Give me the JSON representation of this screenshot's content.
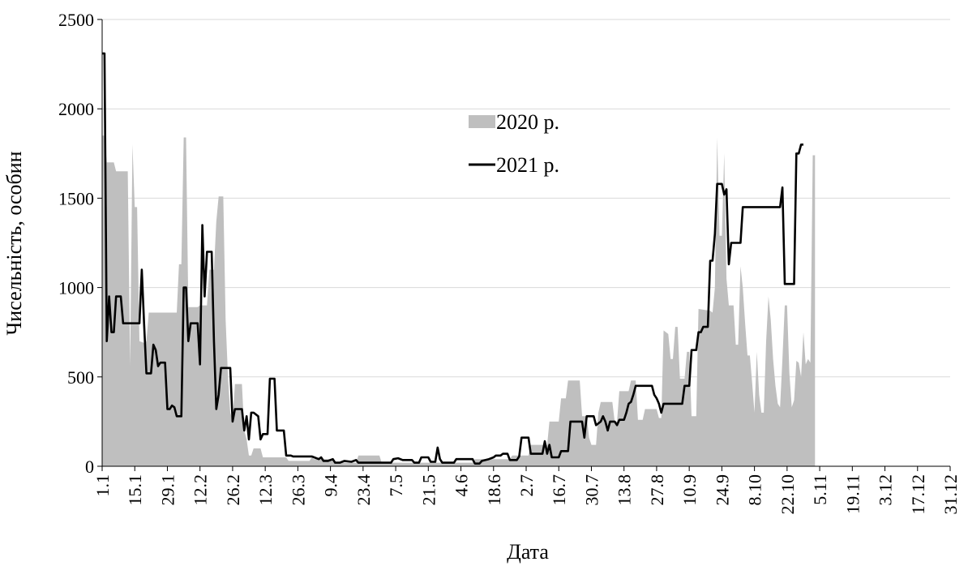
{
  "chart_data": {
    "type": "area+line",
    "title": "",
    "xlabel": "Дата",
    "ylabel": "Чисельність, особин",
    "ylim": [
      0,
      2500
    ],
    "yticks": [
      0,
      500,
      1000,
      1500,
      2000,
      2500
    ],
    "x_tick_labels": [
      "1.1",
      "15.1",
      "29.1",
      "12.2",
      "26.2",
      "12.3",
      "26.3",
      "9.4",
      "23.4",
      "7.5",
      "21.5",
      "4.6",
      "18.6",
      "2.7",
      "16.7",
      "30.7",
      "13.8",
      "27.8",
      "10.9",
      "24.9",
      "8.10",
      "22.10",
      "5.11",
      "19.11",
      "3.12",
      "17.12",
      "31.12"
    ],
    "x_tick_days": [
      1,
      15,
      29,
      43,
      57,
      71,
      85,
      99,
      113,
      127,
      141,
      155,
      169,
      183,
      197,
      211,
      225,
      239,
      253,
      267,
      281,
      295,
      309,
      323,
      337,
      351,
      365
    ],
    "grid": "horizontal",
    "legend_position": "top-center",
    "series": [
      {
        "name": "2020 р.",
        "style": "area",
        "color": "#bfbfbf",
        "points": [
          [
            1,
            1850
          ],
          [
            2,
            1850
          ],
          [
            3,
            1700
          ],
          [
            6,
            1700
          ],
          [
            7,
            1650
          ],
          [
            12,
            1650
          ],
          [
            13,
            560
          ],
          [
            14,
            1800
          ],
          [
            15,
            1450
          ],
          [
            16,
            1450
          ],
          [
            17,
            700
          ],
          [
            19,
            690
          ],
          [
            20,
            700
          ],
          [
            21,
            860
          ],
          [
            33,
            860
          ],
          [
            34,
            1130
          ],
          [
            35,
            1130
          ],
          [
            36,
            1840
          ],
          [
            37,
            1840
          ],
          [
            38,
            890
          ],
          [
            42,
            890
          ],
          [
            43,
            900
          ],
          [
            46,
            900
          ],
          [
            47,
            1100
          ],
          [
            49,
            1100
          ],
          [
            50,
            1370
          ],
          [
            51,
            1510
          ],
          [
            53,
            1510
          ],
          [
            54,
            820
          ],
          [
            55,
            500
          ],
          [
            56,
            300
          ],
          [
            57,
            260
          ],
          [
            58,
            460
          ],
          [
            61,
            460
          ],
          [
            62,
            200
          ],
          [
            63,
            150
          ],
          [
            64,
            60
          ],
          [
            65,
            60
          ],
          [
            66,
            100
          ],
          [
            69,
            100
          ],
          [
            70,
            50
          ],
          [
            80,
            50
          ],
          [
            81,
            30
          ],
          [
            90,
            30
          ],
          [
            91,
            50
          ],
          [
            92,
            40
          ],
          [
            100,
            40
          ],
          [
            101,
            20
          ],
          [
            110,
            20
          ],
          [
            111,
            60
          ],
          [
            120,
            60
          ],
          [
            121,
            20
          ],
          [
            160,
            20
          ],
          [
            161,
            40
          ],
          [
            176,
            40
          ],
          [
            177,
            60
          ],
          [
            184,
            60
          ],
          [
            185,
            120
          ],
          [
            192,
            120
          ],
          [
            193,
            250
          ],
          [
            197,
            250
          ],
          [
            198,
            380
          ],
          [
            200,
            380
          ],
          [
            201,
            480
          ],
          [
            206,
            480
          ],
          [
            207,
            280
          ],
          [
            209,
            280
          ],
          [
            210,
            160
          ],
          [
            211,
            120
          ],
          [
            213,
            120
          ],
          [
            214,
            300
          ],
          [
            215,
            360
          ],
          [
            220,
            360
          ],
          [
            221,
            250
          ],
          [
            222,
            250
          ],
          [
            223,
            420
          ],
          [
            227,
            420
          ],
          [
            228,
            480
          ],
          [
            230,
            480
          ],
          [
            231,
            260
          ],
          [
            233,
            260
          ],
          [
            234,
            320
          ],
          [
            239,
            320
          ],
          [
            240,
            270
          ],
          [
            241,
            270
          ],
          [
            242,
            760
          ],
          [
            244,
            740
          ],
          [
            245,
            600
          ],
          [
            246,
            600
          ],
          [
            247,
            780
          ],
          [
            248,
            780
          ],
          [
            249,
            490
          ],
          [
            251,
            490
          ],
          [
            252,
            640
          ],
          [
            253,
            640
          ],
          [
            254,
            280
          ],
          [
            256,
            280
          ],
          [
            257,
            880
          ],
          [
            262,
            870
          ],
          [
            263,
            860
          ],
          [
            264,
            1000
          ],
          [
            265,
            1840
          ],
          [
            266,
            1290
          ],
          [
            267,
            1290
          ],
          [
            268,
            1750
          ],
          [
            269,
            1050
          ],
          [
            270,
            900
          ],
          [
            272,
            900
          ],
          [
            273,
            680
          ],
          [
            274,
            680
          ],
          [
            275,
            1120
          ],
          [
            276,
            1000
          ],
          [
            277,
            800
          ],
          [
            278,
            620
          ],
          [
            279,
            620
          ],
          [
            280,
            470
          ],
          [
            281,
            300
          ],
          [
            282,
            640
          ],
          [
            283,
            400
          ],
          [
            284,
            300
          ],
          [
            285,
            300
          ],
          [
            286,
            700
          ],
          [
            287,
            950
          ],
          [
            288,
            820
          ],
          [
            289,
            600
          ],
          [
            290,
            450
          ],
          [
            291,
            350
          ],
          [
            292,
            330
          ],
          [
            293,
            600
          ],
          [
            294,
            900
          ],
          [
            295,
            900
          ],
          [
            296,
            520
          ],
          [
            297,
            330
          ],
          [
            298,
            370
          ],
          [
            299,
            590
          ],
          [
            300,
            580
          ],
          [
            301,
            500
          ],
          [
            302,
            750
          ],
          [
            303,
            570
          ],
          [
            304,
            600
          ],
          [
            305,
            580
          ],
          [
            306,
            1740
          ],
          [
            307,
            1740
          ]
        ]
      },
      {
        "name": "2021 р.",
        "style": "line",
        "color": "#000000",
        "points": [
          [
            1,
            2310
          ],
          [
            2,
            2310
          ],
          [
            3,
            700
          ],
          [
            4,
            950
          ],
          [
            5,
            750
          ],
          [
            6,
            750
          ],
          [
            7,
            950
          ],
          [
            9,
            950
          ],
          [
            10,
            800
          ],
          [
            17,
            800
          ],
          [
            18,
            1100
          ],
          [
            19,
            800
          ],
          [
            20,
            520
          ],
          [
            22,
            520
          ],
          [
            23,
            680
          ],
          [
            24,
            650
          ],
          [
            25,
            560
          ],
          [
            26,
            580
          ],
          [
            28,
            580
          ],
          [
            29,
            320
          ],
          [
            30,
            320
          ],
          [
            31,
            340
          ],
          [
            32,
            330
          ],
          [
            33,
            280
          ],
          [
            35,
            280
          ],
          [
            36,
            1000
          ],
          [
            37,
            1000
          ],
          [
            38,
            700
          ],
          [
            39,
            800
          ],
          [
            42,
            800
          ],
          [
            43,
            570
          ],
          [
            44,
            1350
          ],
          [
            45,
            950
          ],
          [
            46,
            1200
          ],
          [
            48,
            1200
          ],
          [
            49,
            700
          ],
          [
            50,
            320
          ],
          [
            51,
            400
          ],
          [
            52,
            550
          ],
          [
            56,
            550
          ],
          [
            57,
            250
          ],
          [
            58,
            320
          ],
          [
            61,
            320
          ],
          [
            62,
            200
          ],
          [
            63,
            280
          ],
          [
            64,
            150
          ],
          [
            65,
            300
          ],
          [
            66,
            300
          ],
          [
            68,
            280
          ],
          [
            69,
            150
          ],
          [
            70,
            180
          ],
          [
            72,
            180
          ],
          [
            73,
            490
          ],
          [
            75,
            490
          ],
          [
            76,
            200
          ],
          [
            79,
            200
          ],
          [
            80,
            60
          ],
          [
            82,
            60
          ],
          [
            83,
            55
          ],
          [
            91,
            55
          ],
          [
            92,
            50
          ],
          [
            94,
            40
          ],
          [
            95,
            50
          ],
          [
            96,
            30
          ],
          [
            98,
            30
          ],
          [
            100,
            40
          ],
          [
            101,
            20
          ],
          [
            103,
            20
          ],
          [
            105,
            30
          ],
          [
            108,
            25
          ],
          [
            110,
            35
          ],
          [
            111,
            20
          ],
          [
            125,
            20
          ],
          [
            126,
            40
          ],
          [
            128,
            45
          ],
          [
            130,
            35
          ],
          [
            134,
            35
          ],
          [
            135,
            20
          ],
          [
            137,
            20
          ],
          [
            138,
            50
          ],
          [
            141,
            50
          ],
          [
            142,
            25
          ],
          [
            144,
            25
          ],
          [
            145,
            105
          ],
          [
            146,
            40
          ],
          [
            147,
            20
          ],
          [
            152,
            20
          ],
          [
            153,
            40
          ],
          [
            160,
            40
          ],
          [
            161,
            15
          ],
          [
            163,
            15
          ],
          [
            164,
            30
          ],
          [
            167,
            40
          ],
          [
            169,
            50
          ],
          [
            170,
            60
          ],
          [
            172,
            60
          ],
          [
            173,
            70
          ],
          [
            175,
            70
          ],
          [
            176,
            35
          ],
          [
            179,
            35
          ],
          [
            180,
            55
          ],
          [
            181,
            160
          ],
          [
            184,
            160
          ],
          [
            185,
            70
          ],
          [
            190,
            70
          ],
          [
            191,
            140
          ],
          [
            192,
            70
          ],
          [
            193,
            120
          ],
          [
            194,
            50
          ],
          [
            197,
            50
          ],
          [
            198,
            85
          ],
          [
            201,
            85
          ],
          [
            202,
            250
          ],
          [
            207,
            250
          ],
          [
            208,
            160
          ],
          [
            209,
            280
          ],
          [
            212,
            280
          ],
          [
            213,
            230
          ],
          [
            214,
            240
          ],
          [
            215,
            250
          ],
          [
            216,
            280
          ],
          [
            217,
            250
          ],
          [
            218,
            200
          ],
          [
            219,
            250
          ],
          [
            221,
            250
          ],
          [
            222,
            230
          ],
          [
            223,
            260
          ],
          [
            225,
            260
          ],
          [
            226,
            300
          ],
          [
            227,
            350
          ],
          [
            228,
            360
          ],
          [
            229,
            400
          ],
          [
            230,
            450
          ],
          [
            237,
            450
          ],
          [
            238,
            400
          ],
          [
            239,
            380
          ],
          [
            240,
            350
          ],
          [
            241,
            300
          ],
          [
            242,
            350
          ],
          [
            244,
            350
          ],
          [
            245,
            350
          ],
          [
            250,
            350
          ],
          [
            251,
            450
          ],
          [
            253,
            450
          ],
          [
            254,
            650
          ],
          [
            256,
            650
          ],
          [
            257,
            750
          ],
          [
            258,
            750
          ],
          [
            259,
            780
          ],
          [
            261,
            780
          ],
          [
            262,
            1150
          ],
          [
            263,
            1150
          ],
          [
            264,
            1300
          ],
          [
            265,
            1580
          ],
          [
            267,
            1580
          ],
          [
            268,
            1520
          ],
          [
            269,
            1550
          ],
          [
            270,
            1130
          ],
          [
            271,
            1250
          ],
          [
            275,
            1250
          ],
          [
            276,
            1450
          ],
          [
            292,
            1450
          ],
          [
            293,
            1560
          ],
          [
            294,
            1020
          ],
          [
            298,
            1020
          ],
          [
            299,
            1750
          ],
          [
            300,
            1750
          ],
          [
            301,
            1800
          ],
          [
            302,
            1800
          ]
        ]
      }
    ]
  }
}
